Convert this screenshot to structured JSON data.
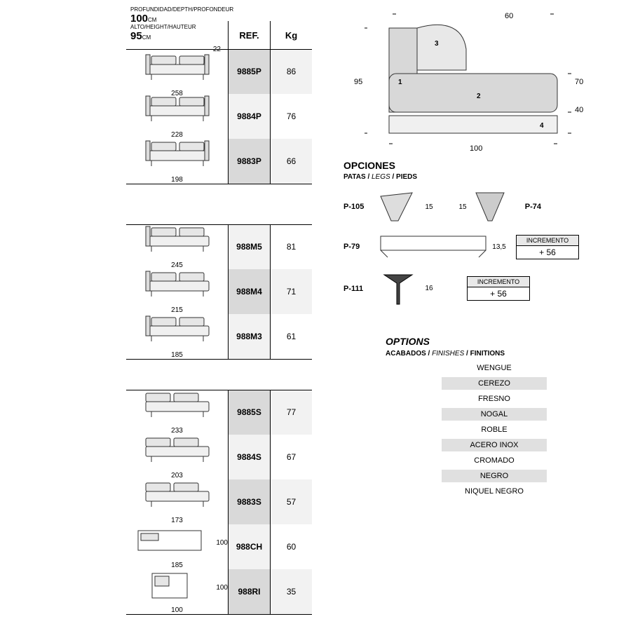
{
  "header": {
    "depth_label": "PROFUNDIDAD/DEPTH/PROFONDEUR",
    "depth_value": "100",
    "depth_unit": "CM",
    "height_label": "ALTO/HEIGHT/HAUTEUR",
    "height_value": "95",
    "height_unit": "CM"
  },
  "columns": {
    "ref": "REF.",
    "kg": "Kg"
  },
  "groups": [
    {
      "top_hr": true,
      "rows": [
        {
          "width": "258",
          "top_dim": "22",
          "ref": "9885P",
          "kg": "86",
          "shade": true,
          "variant": "full"
        },
        {
          "width": "228",
          "ref": "9884P",
          "kg": "76",
          "shade": false,
          "variant": "full"
        },
        {
          "width": "198",
          "ref": "9883P",
          "kg": "66",
          "shade": true,
          "variant": "full"
        }
      ]
    },
    {
      "top_hr": true,
      "rows": [
        {
          "width": "245",
          "ref": "988M5",
          "kg": "81",
          "shade": false,
          "variant": "onearm"
        },
        {
          "width": "215",
          "ref": "988M4",
          "kg": "71",
          "shade": true,
          "variant": "onearm"
        },
        {
          "width": "185",
          "ref": "988M3",
          "kg": "61",
          "shade": false,
          "variant": "onearm"
        }
      ]
    },
    {
      "top_hr": true,
      "rows": [
        {
          "width": "233",
          "ref": "9885S",
          "kg": "77",
          "shade": true,
          "variant": "noarm"
        },
        {
          "width": "203",
          "ref": "9884S",
          "kg": "67",
          "shade": false,
          "variant": "noarm"
        },
        {
          "width": "173",
          "ref": "9883S",
          "kg": "57",
          "shade": true,
          "variant": "noarm"
        },
        {
          "width": "185",
          "side_dim": "100",
          "ref": "988CH",
          "kg": "60",
          "shade": false,
          "variant": "chaise"
        },
        {
          "width": "100",
          "side_dim": "100",
          "ref": "988RI",
          "kg": "35",
          "shade": true,
          "variant": "corner"
        }
      ]
    }
  ],
  "profile": {
    "left_h": "95",
    "top_w": "60",
    "right_h1": "70",
    "right_h2": "40",
    "bottom_w": "100",
    "parts": {
      "p1": "1",
      "p2": "2",
      "p3": "3",
      "p4": "4"
    }
  },
  "opciones": {
    "title": "OPCIONES",
    "patas": "PATAS / ",
    "patas_it": "LEGS",
    "patas_fr": " / PIEDS"
  },
  "legs": [
    {
      "name": "P-105",
      "dim": "15",
      "pair_name": "P-74",
      "pair_dim": "15"
    },
    {
      "name": "P-79",
      "dim": "13,5",
      "increment_label": "INCREMENTO",
      "increment_val": "+ 56"
    },
    {
      "name": "P-111",
      "dim": "16",
      "increment_label": "INCREMENTO",
      "increment_val": "+ 56"
    }
  ],
  "options": {
    "title": "OPTIONS",
    "sub_a": "ACABADOS / ",
    "sub_it": "FINISHES",
    "sub_fr": " / FINITIONS",
    "items": [
      {
        "label": "WENGUE",
        "shade": false
      },
      {
        "label": "CEREZO",
        "shade": true
      },
      {
        "label": "FRESNO",
        "shade": false
      },
      {
        "label": "NOGAL",
        "shade": true
      },
      {
        "label": "ROBLE",
        "shade": false
      },
      {
        "label": "ACERO INOX",
        "shade": true
      },
      {
        "label": "CROMADO",
        "shade": false
      },
      {
        "label": "NEGRO",
        "shade": true
      },
      {
        "label": "NIQUEL NEGRO",
        "shade": false
      }
    ]
  },
  "colors": {
    "line": "#000000",
    "shade_dark": "#d9d9d9",
    "shade_light": "#f2f2f2",
    "sofa_fill": "#e6e6e6",
    "sofa_stroke": "#333333",
    "profile_fill": "#d8d8d8"
  }
}
